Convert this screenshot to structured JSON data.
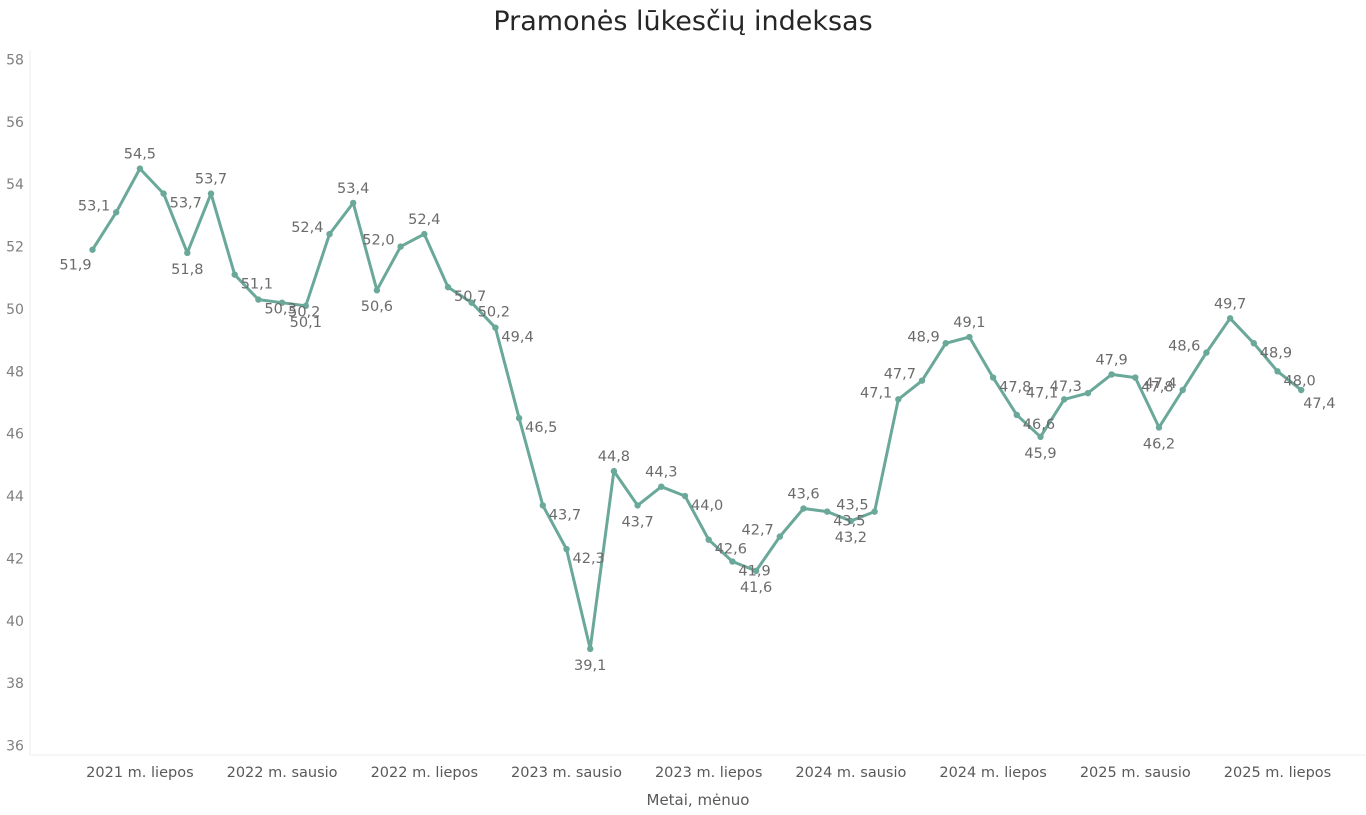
{
  "chart_data": {
    "type": "line",
    "title": "Pramonės lūkesčių indeksas",
    "xlabel": "Metai, mėnuo",
    "ylabel": "",
    "ylim": [
      36,
      58
    ],
    "yticks": [
      36,
      38,
      40,
      42,
      44,
      46,
      48,
      50,
      52,
      54,
      56,
      58
    ],
    "grid": false,
    "x_tick_labels": [
      "2021 m. liepos",
      "2022 m. sausio",
      "2022 m. liepos",
      "2023 m. sausio",
      "2023 m. liepos",
      "2024 m. sausio",
      "2024 m. liepos",
      "2025 m. sausio",
      "2025 m. liepos"
    ],
    "x_tick_indices": [
      2,
      8,
      14,
      20,
      26,
      32,
      38,
      44,
      50
    ],
    "series": [
      {
        "color": "#6aa899",
        "values": [
          51.9,
          53.1,
          54.5,
          53.7,
          51.8,
          53.7,
          51.1,
          50.3,
          50.2,
          50.1,
          52.4,
          53.4,
          50.6,
          52.0,
          52.4,
          50.7,
          50.2,
          49.4,
          46.5,
          43.7,
          42.3,
          39.1,
          44.8,
          43.7,
          44.3,
          44.0,
          42.6,
          41.9,
          41.6,
          42.7,
          43.6,
          43.5,
          43.2,
          43.5,
          47.1,
          47.7,
          48.9,
          49.1,
          47.8,
          46.6,
          45.9,
          47.1,
          47.3,
          47.9,
          47.8,
          46.2,
          47.4,
          48.6,
          49.7,
          48.9,
          48.0,
          47.4
        ],
        "labels": [
          "51,9",
          "53,1",
          "54,5",
          "53,7",
          "51,8",
          "53,7",
          "51,1",
          "50,3",
          "50,2",
          "50,1",
          "52,4",
          "53,4",
          "50,6",
          "52,0",
          "52,4",
          "50,7",
          "50,2",
          "49,4",
          "46,5",
          "43,7",
          "42,3",
          "39,1",
          "44,8",
          "43,7",
          "44,3",
          "44,0",
          "42,6",
          "41,9",
          "41,6",
          "42,7",
          "43,6",
          "43,5",
          "43,2",
          "43,5",
          "47,1",
          "47,7",
          "48,9",
          "49,1",
          "47,8",
          "46,6",
          "45,9",
          "47,1",
          "47,3",
          "47,9",
          "47,8",
          "46,2",
          "47,4",
          "48,6",
          "49,7",
          "48,9",
          "48,0",
          "47,4"
        ]
      }
    ]
  }
}
